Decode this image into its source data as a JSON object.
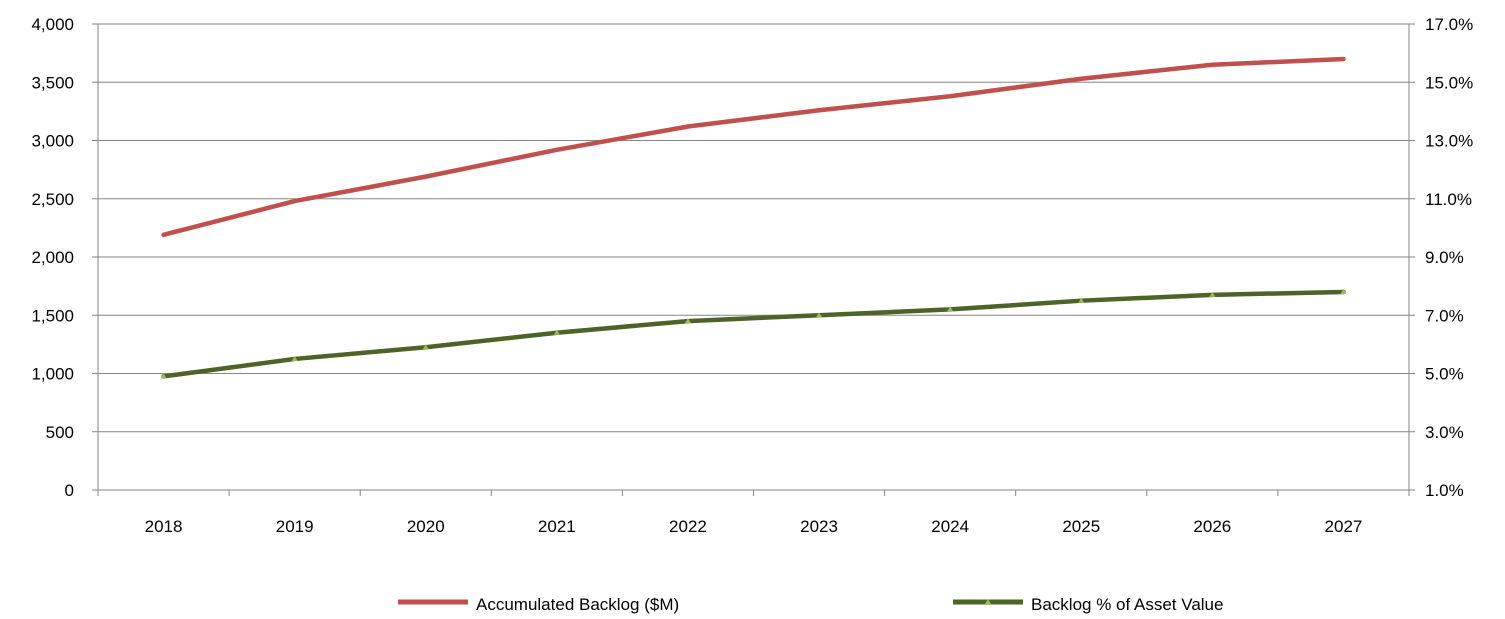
{
  "chart_data": {
    "type": "line",
    "categories": [
      "2018",
      "2019",
      "2020",
      "2021",
      "2022",
      "2023",
      "2024",
      "2025",
      "2026",
      "2027"
    ],
    "series": [
      {
        "name": "Accumulated Backlog ($M)",
        "axis": "left",
        "color": "#C0504D",
        "values": [
          2190,
          2480,
          2690,
          2920,
          3120,
          3260,
          3380,
          3530,
          3650,
          3700
        ]
      },
      {
        "name": "Backlog % of Asset Value",
        "axis": "right",
        "color": "#4F6228",
        "marker_color": "#9BBB59",
        "values": [
          4.9,
          5.5,
          5.9,
          6.4,
          6.8,
          7.0,
          7.2,
          7.5,
          7.7,
          7.8
        ]
      }
    ],
    "y_left": {
      "min": 0,
      "max": 4000,
      "ticks": [
        0,
        500,
        1000,
        1500,
        2000,
        2500,
        3000,
        3500,
        4000
      ],
      "tick_labels": [
        "0",
        "500",
        "1,000",
        "1,500",
        "2,000",
        "2,500",
        "3,000",
        "3,500",
        "4,000"
      ]
    },
    "y_right": {
      "min": 1.0,
      "max": 17.0,
      "ticks": [
        1,
        3,
        5,
        7,
        9,
        11,
        13,
        15,
        17
      ],
      "tick_labels": [
        "1.0%",
        "3.0%",
        "5.0%",
        "7.0%",
        "9.0%",
        "11.0%",
        "13.0%",
        "15.0%",
        "17.0%"
      ]
    },
    "grid": "horizontal",
    "legend_position": "bottom"
  }
}
